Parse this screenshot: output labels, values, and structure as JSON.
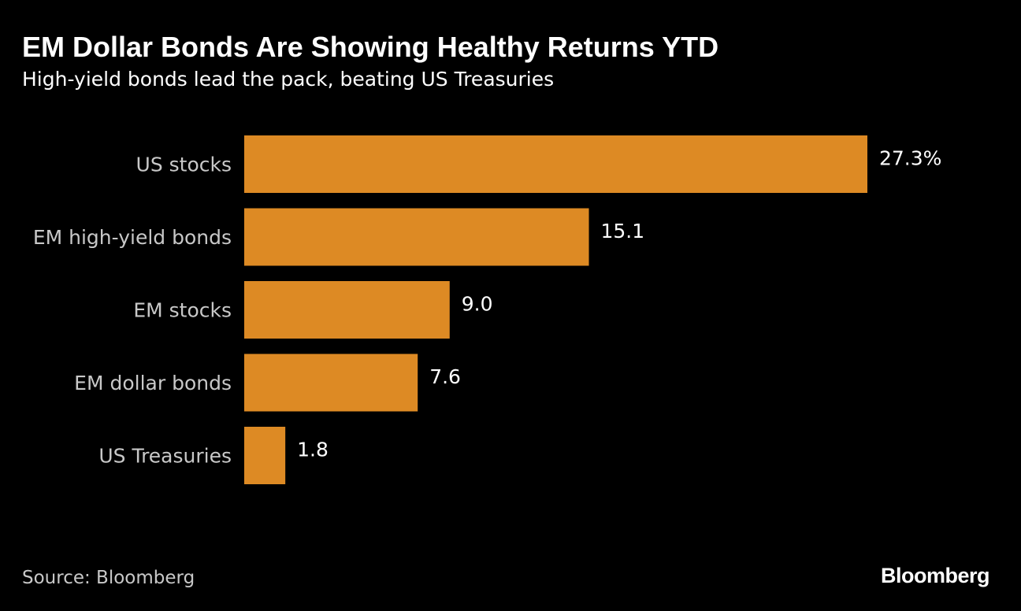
{
  "chart_data": {
    "type": "bar",
    "orientation": "horizontal",
    "title": "EM Dollar Bonds Are Showing Healthy Returns YTD",
    "subtitle": "High-yield bonds lead the pack, beating US Treasuries",
    "categories": [
      "US stocks",
      "EM high-yield bonds",
      "EM stocks",
      "EM dollar bonds",
      "US Treasuries"
    ],
    "values": [
      27.3,
      15.1,
      9.0,
      7.6,
      1.8
    ],
    "value_labels": [
      "27.3%",
      "15.1",
      "9.0",
      "7.6",
      "1.8"
    ],
    "xlim": [
      0,
      27.3
    ],
    "grid": false,
    "legend": "none",
    "bar_color": "#dd8a24"
  },
  "footer": {
    "source": "Source: Bloomberg",
    "brand": "Bloomberg"
  },
  "colors": {
    "background": "#000000",
    "bar": "#dd8a24",
    "category_text": "#c8c8c8",
    "value_text": "#ffffff"
  }
}
